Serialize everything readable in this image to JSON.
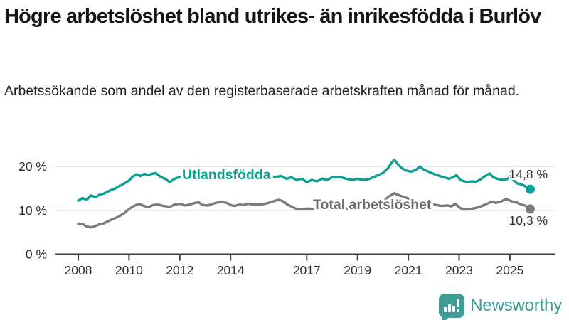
{
  "header": {
    "title": "Högre arbetslöshet bland utrikes- än inrikesfödda i Burlöv",
    "subtitle": "Arbetssökande som andel av den registerbaserade arbetskraften månad för månad."
  },
  "footer": {
    "brand": "Newsworthy",
    "logo_icon": "bar-chart-speech-bubble-icon"
  },
  "colors": {
    "teal_series": "#0ca094",
    "gray_series": "#7b7b7b",
    "gray_label": "#6d6d6d",
    "axis": "#3f3f3f",
    "grid": "#d8d8d8",
    "tick_text": "#2e2e2e",
    "value_text": "#303030",
    "logo_teal": "#3f9d97"
  },
  "chart_data": {
    "type": "line",
    "unit": "%",
    "x_axis": {
      "ticks": [
        2008,
        2010,
        2012,
        2014,
        2017,
        2019,
        2021,
        2023,
        2025
      ],
      "tick_labels": [
        "2008",
        "2010",
        "2012",
        "2014",
        "2017",
        "2019",
        "2021",
        "2023",
        "2025"
      ],
      "range": [
        2007.1,
        2026.8
      ]
    },
    "y_axis": {
      "ticks": [
        0,
        10,
        20
      ],
      "tick_labels": [
        "0 %",
        "10 %",
        "20 %"
      ],
      "range": [
        0,
        25
      ]
    },
    "grid": "horizontal-only",
    "legend": "inline-labels",
    "series": [
      {
        "name": "Utlandsfödda",
        "color": "#0ca094",
        "label_color": "#0ca094",
        "end_label": "14,8 %",
        "end_value": 14.8,
        "points": [
          [
            2008.0,
            12.2
          ],
          [
            2008.17,
            12.8
          ],
          [
            2008.33,
            12.4
          ],
          [
            2008.5,
            13.4
          ],
          [
            2008.67,
            13.0
          ],
          [
            2008.83,
            13.5
          ],
          [
            2009.0,
            13.8
          ],
          [
            2009.25,
            14.5
          ],
          [
            2009.5,
            15.1
          ],
          [
            2009.75,
            15.9
          ],
          [
            2010.0,
            16.8
          ],
          [
            2010.15,
            17.7
          ],
          [
            2010.3,
            18.2
          ],
          [
            2010.45,
            17.8
          ],
          [
            2010.6,
            18.3
          ],
          [
            2010.75,
            18.0
          ],
          [
            2010.9,
            18.3
          ],
          [
            2011.05,
            18.5
          ],
          [
            2011.25,
            17.6
          ],
          [
            2011.45,
            17.1
          ],
          [
            2011.6,
            16.4
          ],
          [
            2011.8,
            17.2
          ],
          [
            2012.0,
            17.6
          ],
          [
            2012.25,
            17.9
          ],
          [
            2012.5,
            17.6
          ],
          [
            2012.75,
            18.0
          ],
          [
            2013.0,
            17.7
          ],
          [
            2013.25,
            18.1
          ],
          [
            2013.5,
            17.8
          ],
          [
            2013.75,
            18.0
          ],
          [
            2014.0,
            18.2
          ],
          [
            2014.25,
            17.7
          ],
          [
            2014.5,
            17.9
          ],
          [
            2014.75,
            18.1
          ],
          [
            2015.0,
            17.7
          ],
          [
            2015.25,
            17.5
          ],
          [
            2015.5,
            17.8
          ],
          [
            2015.75,
            17.6
          ],
          [
            2016.0,
            17.8
          ],
          [
            2016.2,
            17.2
          ],
          [
            2016.4,
            17.5
          ],
          [
            2016.6,
            16.9
          ],
          [
            2016.8,
            17.2
          ],
          [
            2017.0,
            16.4
          ],
          [
            2017.2,
            16.9
          ],
          [
            2017.4,
            16.6
          ],
          [
            2017.6,
            17.2
          ],
          [
            2017.8,
            16.9
          ],
          [
            2018.0,
            17.5
          ],
          [
            2018.3,
            17.6
          ],
          [
            2018.55,
            17.2
          ],
          [
            2018.8,
            16.9
          ],
          [
            2019.0,
            17.2
          ],
          [
            2019.2,
            16.9
          ],
          [
            2019.4,
            17.0
          ],
          [
            2019.6,
            17.5
          ],
          [
            2019.8,
            18.0
          ],
          [
            2020.0,
            18.5
          ],
          [
            2020.2,
            19.6
          ],
          [
            2020.35,
            20.9
          ],
          [
            2020.45,
            21.5
          ],
          [
            2020.6,
            20.4
          ],
          [
            2020.75,
            19.6
          ],
          [
            2020.9,
            19.1
          ],
          [
            2021.1,
            18.8
          ],
          [
            2021.3,
            19.2
          ],
          [
            2021.45,
            20.0
          ],
          [
            2021.6,
            19.3
          ],
          [
            2021.8,
            18.8
          ],
          [
            2022.0,
            18.3
          ],
          [
            2022.2,
            17.9
          ],
          [
            2022.4,
            17.5
          ],
          [
            2022.6,
            17.2
          ],
          [
            2022.75,
            17.5
          ],
          [
            2022.9,
            18.0
          ],
          [
            2023.05,
            16.9
          ],
          [
            2023.3,
            16.4
          ],
          [
            2023.5,
            16.6
          ],
          [
            2023.65,
            16.5
          ],
          [
            2023.8,
            16.9
          ],
          [
            2024.0,
            17.7
          ],
          [
            2024.2,
            18.4
          ],
          [
            2024.35,
            17.5
          ],
          [
            2024.55,
            17.1
          ],
          [
            2024.75,
            16.9
          ],
          [
            2024.9,
            17.1
          ],
          [
            2025.0,
            17.7
          ],
          [
            2025.15,
            16.8
          ],
          [
            2025.3,
            16.1
          ],
          [
            2025.45,
            15.9
          ],
          [
            2025.6,
            15.5
          ],
          [
            2025.8,
            14.8
          ]
        ]
      },
      {
        "name": "Total arbetslöshet",
        "color": "#7b7b7b",
        "label_color": "#6d6d6d",
        "end_label": "10,3 %",
        "end_value": 10.3,
        "points": [
          [
            2008.0,
            7.0
          ],
          [
            2008.17,
            6.9
          ],
          [
            2008.33,
            6.3
          ],
          [
            2008.5,
            6.1
          ],
          [
            2008.67,
            6.4
          ],
          [
            2008.83,
            6.8
          ],
          [
            2009.0,
            7.0
          ],
          [
            2009.2,
            7.6
          ],
          [
            2009.4,
            8.1
          ],
          [
            2009.6,
            8.6
          ],
          [
            2009.8,
            9.3
          ],
          [
            2010.0,
            10.3
          ],
          [
            2010.2,
            11.0
          ],
          [
            2010.4,
            11.5
          ],
          [
            2010.55,
            11.1
          ],
          [
            2010.75,
            10.7
          ],
          [
            2010.95,
            11.2
          ],
          [
            2011.15,
            11.3
          ],
          [
            2011.35,
            11.0
          ],
          [
            2011.6,
            10.8
          ],
          [
            2011.8,
            11.3
          ],
          [
            2012.0,
            11.5
          ],
          [
            2012.2,
            11.1
          ],
          [
            2012.4,
            11.3
          ],
          [
            2012.6,
            11.7
          ],
          [
            2012.75,
            11.8
          ],
          [
            2012.9,
            11.2
          ],
          [
            2013.1,
            11.1
          ],
          [
            2013.3,
            11.5
          ],
          [
            2013.5,
            11.8
          ],
          [
            2013.65,
            11.9
          ],
          [
            2013.85,
            11.7
          ],
          [
            2014.0,
            11.2
          ],
          [
            2014.15,
            11.0
          ],
          [
            2014.35,
            11.3
          ],
          [
            2014.5,
            11.2
          ],
          [
            2014.7,
            11.5
          ],
          [
            2014.9,
            11.3
          ],
          [
            2015.1,
            11.3
          ],
          [
            2015.3,
            11.4
          ],
          [
            2015.5,
            11.7
          ],
          [
            2015.7,
            12.1
          ],
          [
            2015.9,
            12.4
          ],
          [
            2016.05,
            12.1
          ],
          [
            2016.25,
            11.3
          ],
          [
            2016.45,
            10.7
          ],
          [
            2016.65,
            10.2
          ],
          [
            2016.85,
            10.3
          ],
          [
            2017.05,
            10.4
          ],
          [
            2017.3,
            10.3
          ],
          [
            2017.55,
            10.5
          ],
          [
            2017.8,
            10.3
          ],
          [
            2018.05,
            10.4
          ],
          [
            2018.3,
            10.6
          ],
          [
            2018.55,
            10.4
          ],
          [
            2018.8,
            10.4
          ],
          [
            2019.05,
            10.5
          ],
          [
            2019.3,
            10.6
          ],
          [
            2019.55,
            10.8
          ],
          [
            2019.8,
            11.2
          ],
          [
            2020.0,
            11.9
          ],
          [
            2020.2,
            13.0
          ],
          [
            2020.45,
            13.9
          ],
          [
            2020.65,
            13.4
          ],
          [
            2020.85,
            13.0
          ],
          [
            2021.05,
            12.6
          ],
          [
            2021.25,
            12.2
          ],
          [
            2021.5,
            11.9
          ],
          [
            2021.75,
            11.6
          ],
          [
            2022.0,
            11.3
          ],
          [
            2022.3,
            11.0
          ],
          [
            2022.55,
            11.1
          ],
          [
            2022.7,
            10.9
          ],
          [
            2022.85,
            11.5
          ],
          [
            2023.05,
            10.5
          ],
          [
            2023.2,
            10.2
          ],
          [
            2023.45,
            10.3
          ],
          [
            2023.7,
            10.6
          ],
          [
            2023.9,
            11.0
          ],
          [
            2024.1,
            11.5
          ],
          [
            2024.3,
            12.0
          ],
          [
            2024.45,
            11.7
          ],
          [
            2024.65,
            12.0
          ],
          [
            2024.85,
            12.6
          ],
          [
            2025.05,
            12.1
          ],
          [
            2025.25,
            11.8
          ],
          [
            2025.45,
            11.3
          ],
          [
            2025.6,
            11.1
          ],
          [
            2025.7,
            10.7
          ],
          [
            2025.8,
            10.3
          ]
        ]
      }
    ]
  }
}
